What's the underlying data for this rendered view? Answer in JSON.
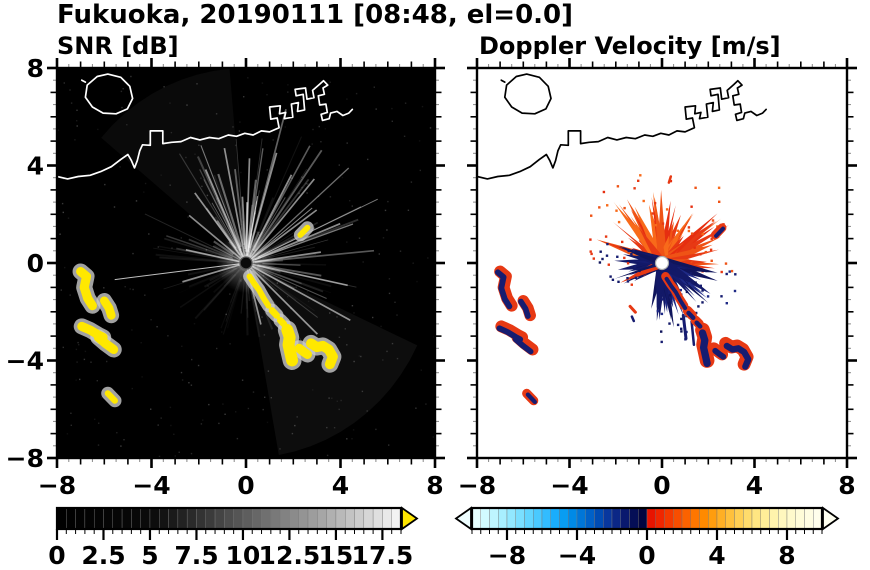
{
  "title": "Fukuoka, 20190111 [08:48, el=0.0]",
  "panels": {
    "snr": {
      "title": "SNR [dB]"
    },
    "velocity": {
      "title": "Doppler Velocity [m/s]"
    }
  },
  "chart_data": {
    "type": "heatmap",
    "subtype": "dual-panel weather-radar PPI",
    "site": "Fukuoka",
    "date": "20190111",
    "time": "08:48",
    "elevation_deg": 0.0,
    "radar_center": [
      0,
      0
    ],
    "x_axis": {
      "range": [
        -8,
        8
      ],
      "major_ticks": [
        -8,
        -4,
        0,
        4,
        8
      ],
      "major_tick_labels": [
        "−8",
        "−4",
        "0",
        "4",
        "8"
      ],
      "minor_step": 0.5
    },
    "y_axis": {
      "range": [
        -8,
        8
      ],
      "major_ticks": [
        8,
        4,
        0,
        -4,
        -8
      ],
      "major_tick_labels": [
        "8",
        "4",
        "0",
        "−4",
        "−8"
      ],
      "minor_step": 0.5
    },
    "coastlines": [
      [
        [
          -8,
          3.55
        ],
        [
          -7.55,
          3.45
        ],
        [
          -7.1,
          3.55
        ],
        [
          -6.6,
          3.6
        ],
        [
          -6.15,
          3.75
        ],
        [
          -5.7,
          3.95
        ],
        [
          -5.3,
          4.25
        ],
        [
          -5.0,
          4.45
        ],
        [
          -4.85,
          4.2
        ],
        [
          -4.72,
          3.9
        ],
        [
          -4.6,
          4.2
        ],
        [
          -4.5,
          4.6
        ],
        [
          -4.38,
          4.85
        ],
        [
          -4.05,
          4.83
        ],
        [
          -4.05,
          5.42
        ],
        [
          -3.52,
          5.42
        ],
        [
          -3.52,
          4.9
        ],
        [
          -3.15,
          4.95
        ],
        [
          -2.75,
          4.98
        ],
        [
          -2.35,
          5.15
        ],
        [
          -1.95,
          5.05
        ],
        [
          -1.55,
          5.15
        ],
        [
          -1.15,
          5.1
        ],
        [
          -0.75,
          5.25
        ],
        [
          -0.4,
          5.2
        ],
        [
          -0.05,
          5.32
        ],
        [
          0.3,
          5.25
        ],
        [
          0.65,
          5.42
        ],
        [
          1.0,
          5.38
        ],
        [
          1.4,
          5.55
        ],
        [
          1.32,
          5.95
        ],
        [
          1.05,
          5.9
        ],
        [
          1.0,
          6.4
        ],
        [
          1.45,
          6.45
        ],
        [
          1.42,
          6.12
        ],
        [
          1.68,
          6.18
        ],
        [
          1.62,
          5.92
        ],
        [
          1.98,
          5.98
        ],
        [
          1.92,
          6.52
        ],
        [
          2.22,
          6.58
        ],
        [
          2.18,
          6.22
        ],
        [
          2.48,
          6.28
        ],
        [
          2.42,
          6.92
        ],
        [
          2.12,
          6.86
        ],
        [
          2.08,
          7.12
        ],
        [
          2.52,
          7.18
        ],
        [
          2.58,
          6.72
        ],
        [
          2.88,
          6.78
        ],
        [
          2.82,
          7.08
        ],
        [
          3.1,
          7.32
        ],
        [
          3.28,
          7.48
        ],
        [
          3.46,
          7.3
        ],
        [
          3.26,
          7.18
        ],
        [
          3.32,
          6.92
        ],
        [
          3.06,
          6.86
        ],
        [
          3.12,
          6.48
        ],
        [
          3.38,
          6.52
        ],
        [
          3.44,
          6.18
        ],
        [
          3.18,
          6.1
        ],
        [
          3.24,
          5.85
        ],
        [
          3.52,
          5.92
        ],
        [
          3.58,
          6.15
        ],
        [
          3.85,
          6.22
        ],
        [
          4.1,
          6.05
        ],
        [
          4.35,
          6.15
        ],
        [
          4.5,
          6.3
        ]
      ],
      [
        [
          -5.85,
          7.75
        ],
        [
          -5.3,
          7.62
        ],
        [
          -4.92,
          7.25
        ],
        [
          -4.8,
          6.75
        ],
        [
          -5.02,
          6.32
        ],
        [
          -5.5,
          6.12
        ],
        [
          -6.05,
          6.15
        ],
        [
          -6.5,
          6.4
        ],
        [
          -6.8,
          6.8
        ],
        [
          -6.72,
          7.3
        ],
        [
          -6.3,
          7.65
        ],
        [
          -5.85,
          7.75
        ]
      ],
      [
        [
          -6.95,
          7.5
        ],
        [
          -6.8,
          7.42
        ]
      ]
    ],
    "echo_blobs": [
      {
        "pts": [
          [
            -7.0,
            -0.35
          ],
          [
            -6.75,
            -0.55
          ],
          [
            -6.85,
            -1.0
          ],
          [
            -6.7,
            -1.45
          ],
          [
            -6.5,
            -1.75
          ]
        ],
        "w": 0.3,
        "vo": [
          -0.1,
          -0.03
        ]
      },
      {
        "pts": [
          [
            -6.0,
            -1.55
          ],
          [
            -5.8,
            -1.85
          ],
          [
            -5.7,
            -2.15
          ]
        ],
        "w": 0.28,
        "vo": [
          -0.1,
          -0.03
        ]
      },
      {
        "pts": [
          [
            -6.95,
            -2.6
          ],
          [
            -6.6,
            -2.75
          ],
          [
            -6.25,
            -2.95
          ],
          [
            -6.05,
            -3.05
          ]
        ],
        "w": 0.3,
        "vo": [
          -0.08,
          -0.08
        ]
      },
      {
        "pts": [
          [
            -6.25,
            -3.05
          ],
          [
            -5.95,
            -3.3
          ],
          [
            -5.6,
            -3.55
          ]
        ],
        "w": 0.3,
        "vo": [
          -0.08,
          -0.08
        ]
      },
      {
        "pts": [
          [
            0.15,
            -0.55
          ],
          [
            0.35,
            -0.85
          ],
          [
            0.55,
            -1.1
          ],
          [
            0.75,
            -1.45
          ],
          [
            0.95,
            -1.75
          ]
        ],
        "w": 0.16,
        "vo": [
          0.05,
          -0.1
        ]
      },
      {
        "pts": [
          [
            1.1,
            -1.95
          ],
          [
            1.3,
            -2.15
          ]
        ],
        "w": 0.2,
        "vo": [
          0.05,
          -0.1
        ]
      },
      {
        "pts": [
          [
            1.45,
            -2.35
          ],
          [
            1.6,
            -2.5
          ]
        ],
        "w": 0.2,
        "vo": [
          0.05,
          -0.1
        ]
      },
      {
        "pts": [
          [
            1.75,
            -2.75
          ],
          [
            1.85,
            -3.05
          ],
          [
            1.8,
            -3.35
          ],
          [
            1.88,
            -3.7
          ],
          [
            1.95,
            -4.0
          ]
        ],
        "w": 0.42,
        "vo": [
          0.0,
          -0.12
        ]
      },
      {
        "pts": [
          [
            2.25,
            -3.5
          ],
          [
            2.45,
            -3.65
          ],
          [
            2.6,
            -3.75
          ]
        ],
        "w": 0.3,
        "vo": [
          0.05,
          -0.1
        ]
      },
      {
        "pts": [
          [
            2.75,
            -3.3
          ],
          [
            3.0,
            -3.45
          ],
          [
            3.25,
            -3.4
          ],
          [
            3.5,
            -3.55
          ],
          [
            3.68,
            -3.85
          ],
          [
            3.55,
            -4.15
          ]
        ],
        "w": 0.34,
        "vo": [
          0.05,
          -0.1
        ]
      },
      {
        "pts": [
          [
            -5.85,
            -5.35
          ],
          [
            -5.55,
            -5.65
          ]
        ],
        "w": 0.18,
        "vo": [
          0.05,
          -0.05
        ]
      },
      {
        "pts": [
          [
            2.3,
            1.15
          ],
          [
            2.6,
            1.45
          ]
        ],
        "w": 0.16,
        "vo": [
          0.04,
          -0.04
        ]
      }
    ],
    "panels": [
      {
        "id": "snr",
        "title": "SNR [dB]",
        "background": "#000000",
        "coast_color": "#ffffff",
        "colorbar": {
          "min": 0,
          "max": 18.5,
          "cell_step": 0.5,
          "labels": [
            "0",
            "2.5",
            "5",
            "7.5",
            "10",
            "12.5",
            "15",
            "17.5"
          ],
          "label_values": [
            0,
            2.5,
            5,
            7.5,
            10,
            12.5,
            15,
            17.5
          ],
          "over_arrow_color": "#ffe600",
          "colors": [
            "#000000",
            "#010101",
            "#020202",
            "#030303",
            "#040404",
            "#050505",
            "#060606",
            "#070707",
            "#080808",
            "#0a0a0a",
            "#0d0d0d",
            "#131313",
            "#1a1a1a",
            "#222222",
            "#2a2a2a",
            "#333333",
            "#3b3b3b",
            "#444444",
            "#4d4d4d",
            "#555555",
            "#5e5e5e",
            "#676767",
            "#707070",
            "#797979",
            "#828282",
            "#8b8b8b",
            "#949494",
            "#9d9d9d",
            "#a6a6a6",
            "#b0b0b0",
            "#b9b9b9",
            "#c3c3c3",
            "#cccccc",
            "#d6d6d6",
            "#dfdfdf",
            "#e9e9e9",
            "#f2f2f2"
          ]
        },
        "features": {
          "strong_echo_color": "#ffe800",
          "echo_halo_color": "#c9c9c9",
          "clutter_streaks": {
            "count": 130,
            "len_min": 0.9,
            "len_max": 5.2,
            "bright_angle_deg": 65,
            "rays": [
              {
                "a": 8,
                "l": 3.2
              },
              {
                "a": 22,
                "l": 4.3
              },
              {
                "a": 36,
                "l": 3.7
              },
              {
                "a": 50,
                "l": 4.5
              },
              {
                "a": 62,
                "l": 4.1
              },
              {
                "a": 74,
                "l": 4.7
              },
              {
                "a": 88,
                "l": 4.3
              },
              {
                "a": 101,
                "l": 4.8
              },
              {
                "a": 114,
                "l": 4.2
              },
              {
                "a": 127,
                "l": 3.6
              },
              {
                "a": 141,
                "l": 3.1
              },
              {
                "a": 168,
                "l": 2.6
              },
              {
                "a": 187,
                "l": 5.6,
                "w": 1,
                "o": 0.75
              },
              {
                "a": 196,
                "l": 2.8
              },
              {
                "a": -12,
                "l": 4.4
              },
              {
                "a": -28,
                "l": 5.0
              },
              {
                "a": -44,
                "l": 4.2
              },
              {
                "a": -60,
                "l": 3.4
              },
              {
                "a": -76,
                "l": 2.6
              }
            ],
            "faint_wedges": [
              {
                "a0": -80,
                "a1": -25,
                "o": 0.05
              },
              {
                "a0": 95,
                "a1": 140,
                "o": 0.04
              }
            ]
          }
        }
      },
      {
        "id": "velocity",
        "title": "Doppler Velocity [m/s]",
        "background": "#ffffff",
        "coast_color": "#000000",
        "colorbar": {
          "min": -10,
          "max": 10,
          "cell_step": 0.5,
          "labels": [
            "−8",
            "−4",
            "0",
            "4",
            "8"
          ],
          "label_values": [
            -8,
            -4,
            0,
            4,
            8
          ],
          "under_arrow_color": "#eefeff",
          "over_arrow_color": "#fffff0",
          "colors": [
            "#e6ffff",
            "#d2fbff",
            "#bef5ff",
            "#a8efff",
            "#92e8ff",
            "#7adfff",
            "#62d5ff",
            "#4ac9ff",
            "#32bcff",
            "#1aadfc",
            "#089df2",
            "#008ae6",
            "#0076d8",
            "#0061c8",
            "#004cb4",
            "#08379e",
            "#0b2786",
            "#09196e",
            "#050e56",
            "#020540",
            "#e81400",
            "#f02600",
            "#f43a00",
            "#f84e00",
            "#fb6200",
            "#fe7600",
            "#ff8a00",
            "#ff9d0e",
            "#ffaf24",
            "#ffc03c",
            "#ffcf54",
            "#ffdc6c",
            "#ffe682",
            "#ffee98",
            "#fff3ac",
            "#fff7be",
            "#fffacc",
            "#fffcd8",
            "#fffde2",
            "#fffeec"
          ]
        },
        "features": {
          "toward_color": "#e73914",
          "away_color": "#161c70",
          "fans": [
            {
              "a0": 18,
              "a1": 163,
              "count": 64,
              "lmin": 0.7,
              "lmax": 3.3,
              "base": 1.05,
              "palette": [
                "#e73914",
                "#ef5316",
                "#f86a1a",
                "#e62e10"
              ]
            },
            {
              "a0": -10,
              "a1": 22,
              "count": 18,
              "lmin": 0.6,
              "lmax": 2.55,
              "base": 0.5,
              "palette": [
                "#e73914",
                "#ef5316"
              ]
            },
            {
              "a0": -104,
              "a1": -6,
              "count": 60,
              "lmin": 0.6,
              "lmax": 2.75,
              "base": 0.95,
              "palette": [
                "#161c70",
                "#10155c",
                "#1f2a86",
                "#131968"
              ]
            },
            {
              "a0": 156,
              "a1": 214,
              "count": 30,
              "lmin": 0.5,
              "lmax": 2.3,
              "base": 0.35,
              "palette": [
                "#161c70",
                "#e73914",
                "#10155c",
                "#131968"
              ]
            },
            {
              "a0": 170,
              "a1": 182,
              "count": 10,
              "lmin": 1.0,
              "lmax": 2.9,
              "base": 0.0,
              "palette": [
                "#e73914"
              ],
              "dots_only": true
            }
          ],
          "extra_dashes": [
            {
              "x1": 0.92,
              "y1": -2.15,
              "x2": 1.04,
              "y2": -3.1,
              "c": "#161c70",
              "w": 3
            },
            {
              "x1": 1.28,
              "y1": -2.4,
              "x2": 1.38,
              "y2": -3.35,
              "c": "#161c70",
              "w": 2.5
            },
            {
              "x1": 1.52,
              "y1": -2.5,
              "x2": 1.58,
              "y2": -2.85,
              "c": "#e73914",
              "w": 2.5
            },
            {
              "x1": -1.38,
              "y1": -1.78,
              "x2": -1.15,
              "y2": -2.02,
              "c": "#e73914",
              "w": 3
            },
            {
              "x1": -1.3,
              "y1": -2.2,
              "x2": -1.22,
              "y2": -2.38,
              "c": "#161c70",
              "w": 2.5
            },
            {
              "x1": 0.3,
              "y1": 3.3,
              "x2": 0.38,
              "y2": 3.55,
              "c": "#e73914",
              "w": 2.5
            }
          ]
        }
      }
    ]
  }
}
